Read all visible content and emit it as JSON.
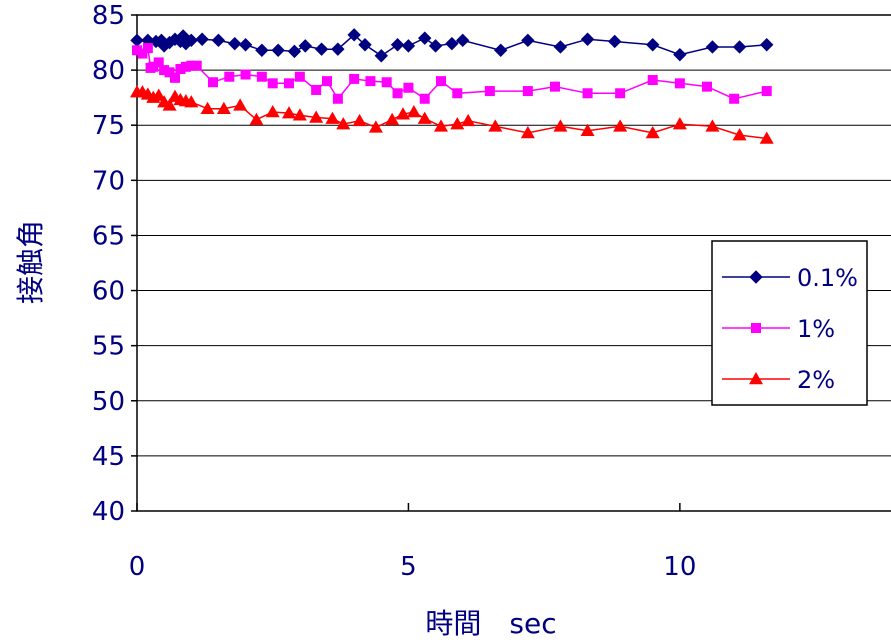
{
  "chart_data": {
    "type": "line",
    "title": "",
    "xlabel": "時間　sec",
    "ylabel": "接触角",
    "xlim": [
      0,
      14
    ],
    "ylim": [
      40,
      85
    ],
    "x_ticks": [
      "0",
      "5",
      "10"
    ],
    "y_ticks": [
      "40",
      "45",
      "50",
      "55",
      "60",
      "65",
      "70",
      "75",
      "80",
      "85"
    ],
    "grid": "horizontal major gridlines",
    "legend_position": "right",
    "series": [
      {
        "name": "0.1%",
        "color": "#000080",
        "marker": "diamond",
        "x": [
          0.0,
          0.2,
          0.35,
          0.45,
          0.5,
          0.6,
          0.7,
          0.8,
          0.85,
          0.9,
          1.0,
          1.2,
          1.5,
          1.8,
          2.0,
          2.3,
          2.6,
          2.9,
          3.1,
          3.4,
          3.7,
          4.0,
          4.2,
          4.5,
          4.8,
          5.0,
          5.3,
          5.5,
          5.8,
          6.0,
          6.7,
          7.2,
          7.8,
          8.3,
          8.8,
          9.5,
          10.0,
          10.6,
          11.1,
          11.6
        ],
        "y": [
          82.7,
          82.7,
          82.6,
          82.7,
          82.2,
          82.5,
          82.8,
          82.6,
          83.1,
          82.4,
          82.7,
          82.8,
          82.7,
          82.4,
          82.3,
          81.8,
          81.8,
          81.7,
          82.2,
          81.9,
          81.9,
          83.2,
          82.3,
          81.3,
          82.3,
          82.2,
          82.9,
          82.2,
          82.4,
          82.7,
          81.8,
          82.7,
          82.1,
          82.8,
          82.6,
          82.3,
          81.4,
          82.1,
          82.1,
          82.3
        ]
      },
      {
        "name": "1%",
        "color": "#ff00ff",
        "marker": "square",
        "x": [
          0.0,
          0.1,
          0.2,
          0.25,
          0.3,
          0.4,
          0.5,
          0.6,
          0.7,
          0.8,
          0.9,
          1.0,
          1.1,
          1.4,
          1.7,
          2.0,
          2.3,
          2.5,
          2.8,
          3.0,
          3.3,
          3.5,
          3.7,
          4.0,
          4.3,
          4.6,
          4.8,
          5.0,
          5.3,
          5.6,
          5.9,
          6.5,
          7.2,
          7.7,
          8.3,
          8.9,
          9.5,
          10.0,
          10.5,
          11.0,
          11.6
        ],
        "y": [
          81.8,
          81.5,
          82.0,
          80.2,
          80.3,
          80.7,
          80.0,
          79.8,
          79.3,
          80.1,
          80.3,
          80.4,
          80.4,
          78.9,
          79.4,
          79.6,
          79.4,
          78.8,
          78.8,
          79.4,
          78.2,
          79.0,
          77.4,
          79.2,
          79.0,
          78.9,
          77.9,
          78.4,
          77.4,
          79.0,
          77.9,
          78.1,
          78.1,
          78.5,
          77.9,
          77.9,
          79.1,
          78.8,
          78.5,
          77.4,
          78.1
        ]
      },
      {
        "name": "2%",
        "color": "#ff0000",
        "marker": "triangle",
        "x": [
          0.0,
          0.1,
          0.2,
          0.3,
          0.4,
          0.5,
          0.6,
          0.7,
          0.8,
          0.9,
          1.0,
          1.3,
          1.6,
          1.9,
          2.2,
          2.5,
          2.8,
          3.0,
          3.3,
          3.6,
          3.8,
          4.1,
          4.4,
          4.7,
          4.9,
          5.1,
          5.3,
          5.6,
          5.9,
          6.1,
          6.6,
          7.2,
          7.8,
          8.3,
          8.9,
          9.5,
          10.0,
          10.6,
          11.1,
          11.6
        ],
        "y": [
          78.0,
          78.0,
          77.8,
          77.5,
          77.7,
          77.1,
          76.8,
          77.6,
          77.3,
          77.2,
          77.1,
          76.5,
          76.5,
          76.8,
          75.5,
          76.2,
          76.1,
          75.9,
          75.7,
          75.6,
          75.1,
          75.4,
          74.8,
          75.5,
          76.0,
          76.2,
          75.6,
          74.9,
          75.1,
          75.4,
          74.9,
          74.3,
          74.9,
          74.5,
          74.9,
          74.3,
          75.1,
          74.9,
          74.1,
          73.8
        ]
      }
    ]
  }
}
